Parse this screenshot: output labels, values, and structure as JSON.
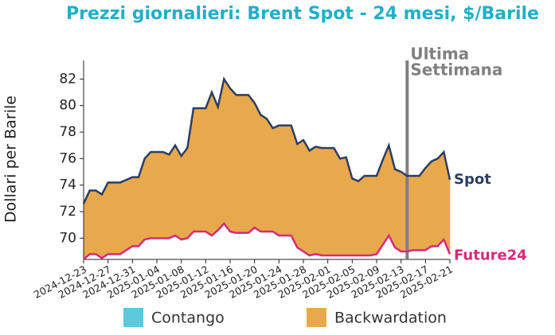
{
  "chart_data": {
    "type": "line",
    "title": "Prezzi giornalieri: Brent Spot - 24 mesi, $/Barile",
    "y_label": "Dollari per Barile",
    "x": [
      "2024-12-23",
      "2024-12-24",
      "2024-12-25",
      "2024-12-26",
      "2024-12-27",
      "2024-12-28",
      "2024-12-29",
      "2024-12-30",
      "2024-12-31",
      "2025-01-01",
      "2025-01-02",
      "2025-01-03",
      "2025-01-04",
      "2025-01-05",
      "2025-01-06",
      "2025-01-07",
      "2025-01-08",
      "2025-01-09",
      "2025-01-10",
      "2025-01-11",
      "2025-01-12",
      "2025-01-13",
      "2025-01-14",
      "2025-01-15",
      "2025-01-16",
      "2025-01-17",
      "2025-01-18",
      "2025-01-19",
      "2025-01-20",
      "2025-01-21",
      "2025-01-22",
      "2025-01-23",
      "2025-01-24",
      "2025-01-25",
      "2025-01-26",
      "2025-01-27",
      "2025-01-28",
      "2025-01-29",
      "2025-01-30",
      "2025-01-31",
      "2025-02-01",
      "2025-02-02",
      "2025-02-03",
      "2025-02-04",
      "2025-02-05",
      "2025-02-06",
      "2025-02-07",
      "2025-02-08",
      "2025-02-09",
      "2025-02-10",
      "2025-02-11",
      "2025-02-12",
      "2025-02-13",
      "2025-02-14",
      "2025-02-15",
      "2025-02-16",
      "2025-02-17",
      "2025-02-18",
      "2025-02-19",
      "2025-02-20",
      "2025-02-21"
    ],
    "series": [
      {
        "name": "Spot",
        "color": "#2c3e63",
        "values": [
          72.6,
          73.6,
          73.6,
          73.3,
          74.2,
          74.2,
          74.2,
          74.4,
          74.6,
          74.6,
          76.0,
          76.5,
          76.5,
          76.5,
          76.3,
          77.0,
          76.2,
          76.8,
          79.8,
          79.8,
          79.8,
          81.0,
          79.9,
          82.0,
          81.3,
          80.8,
          80.8,
          80.8,
          80.2,
          79.3,
          79.0,
          78.3,
          78.5,
          78.5,
          78.5,
          77.1,
          77.4,
          76.6,
          76.9,
          76.8,
          76.8,
          76.8,
          76.0,
          76.1,
          74.5,
          74.3,
          74.7,
          74.7,
          74.7,
          75.9,
          77.0,
          75.2,
          75.0,
          74.7,
          74.7,
          74.7,
          75.3,
          75.8,
          76.0,
          76.5,
          74.4
        ]
      },
      {
        "name": "Future24",
        "color": "#d62a7a",
        "values": [
          68.4,
          68.8,
          68.8,
          68.5,
          68.8,
          68.8,
          68.8,
          69.1,
          69.4,
          69.4,
          69.9,
          70.0,
          70.0,
          70.0,
          70.0,
          70.2,
          69.9,
          70.0,
          70.5,
          70.5,
          70.5,
          70.2,
          70.6,
          71.1,
          70.5,
          70.4,
          70.4,
          70.4,
          70.8,
          70.5,
          70.5,
          70.5,
          70.2,
          70.2,
          70.2,
          69.3,
          69.0,
          68.7,
          68.8,
          68.7,
          68.7,
          68.7,
          68.7,
          68.7,
          68.7,
          68.7,
          68.7,
          68.7,
          68.8,
          69.5,
          70.2,
          69.3,
          69.0,
          69.0,
          69.1,
          69.1,
          69.1,
          69.4,
          69.4,
          69.9,
          68.8
        ]
      }
    ],
    "fill_legend": [
      {
        "name": "Contango",
        "color": "#5bc8dc"
      },
      {
        "name": "Backwardation",
        "color": "#e8a94c"
      }
    ],
    "annotation": {
      "x": "2025-02-14",
      "lines": [
        "Ultima",
        "Settimana"
      ],
      "color": "#808080"
    },
    "ylim": [
      68.4,
      83.4
    ],
    "yticks": [
      70,
      72,
      74,
      76,
      78,
      80,
      82
    ],
    "xticks": [
      "2024-12-23",
      "2024-12-27",
      "2024-12-31",
      "2025-01-04",
      "2025-01-08",
      "2025-01-12",
      "2025-01-16",
      "2025-01-20",
      "2025-01-24",
      "2025-01-28",
      "2025-02-01",
      "2025-02-05",
      "2025-02-09",
      "2025-02-13",
      "2025-02-17",
      "2025-02-21"
    ]
  }
}
